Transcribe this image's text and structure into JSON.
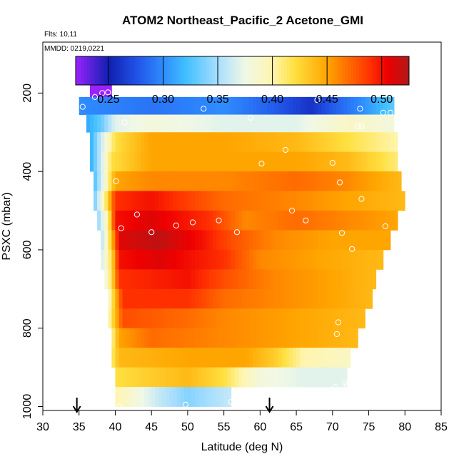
{
  "chart_data": {
    "type": "heatmap",
    "title": "ATOM2 Northeast_Pacific_2 Acetone_GMI",
    "flights_label": "Flts: 10,11",
    "dates_label": "MMDD: 0219,0221",
    "xlabel": "Latitude (deg N)",
    "ylabel": "PSXC (mbar)",
    "xlim": [
      30,
      85
    ],
    "ylim": [
      1010,
      70
    ],
    "y_reversed": true,
    "grid": false,
    "x_ticks": [
      30,
      35,
      40,
      45,
      50,
      55,
      60,
      65,
      70,
      75,
      80,
      85
    ],
    "y_ticks": [
      200,
      400,
      600,
      800,
      1000
    ],
    "colorbar": {
      "placement": "top",
      "range": [
        0.22,
        0.525
      ],
      "ticks": [
        0.25,
        0.3,
        0.35,
        0.4,
        0.45,
        0.5
      ],
      "tick_labels": [
        "0.25",
        "0.30",
        "0.35",
        "0.40",
        "0.45",
        "0.50"
      ],
      "stops": [
        {
          "v": 0.22,
          "c": "#9a22ff"
        },
        {
          "v": 0.25,
          "c": "#1020b0"
        },
        {
          "v": 0.275,
          "c": "#2050e6"
        },
        {
          "v": 0.3,
          "c": "#2f8cff"
        },
        {
          "v": 0.32,
          "c": "#3ebeff"
        },
        {
          "v": 0.35,
          "c": "#a8deff"
        },
        {
          "v": 0.375,
          "c": "#f0f8e6"
        },
        {
          "v": 0.4,
          "c": "#fff5b0"
        },
        {
          "v": 0.42,
          "c": "#ffe040"
        },
        {
          "v": 0.45,
          "c": "#ffa500"
        },
        {
          "v": 0.49,
          "c": "#ff3000"
        },
        {
          "v": 0.505,
          "c": "#ee0000"
        },
        {
          "v": 0.525,
          "c": "#b01818"
        }
      ]
    },
    "rows": [
      {
        "p": [
          170,
          210
        ],
        "lat_min": 36.5,
        "lat_max": 39.5,
        "segments": [
          [
            36.5,
            0.22
          ],
          [
            39.5,
            0.22
          ]
        ]
      },
      {
        "p": [
          210,
          255
        ],
        "lat_min": 35.0,
        "lat_max": 78.5,
        "segments": [
          [
            35,
            0.3
          ],
          [
            45,
            0.29
          ],
          [
            55,
            0.3
          ],
          [
            62,
            0.28
          ],
          [
            67,
            0.26
          ],
          [
            70,
            0.28
          ],
          [
            74,
            0.3
          ],
          [
            78.5,
            0.33
          ]
        ]
      },
      {
        "p": [
          255,
          300
        ],
        "lat_min": 36.0,
        "lat_max": 78.5,
        "segments": [
          [
            36,
            0.31
          ],
          [
            38,
            0.33
          ],
          [
            40,
            0.37
          ],
          [
            45,
            0.38
          ],
          [
            55,
            0.37
          ],
          [
            65,
            0.37
          ],
          [
            72,
            0.39
          ],
          [
            78.5,
            0.38
          ]
        ]
      },
      {
        "p": [
          300,
          350
        ],
        "lat_min": 36.5,
        "lat_max": 79.0,
        "segments": [
          [
            36.5,
            0.31
          ],
          [
            38,
            0.36
          ],
          [
            40,
            0.42
          ],
          [
            45,
            0.45
          ],
          [
            55,
            0.45
          ],
          [
            65,
            0.44
          ],
          [
            72,
            0.42
          ],
          [
            79,
            0.4
          ]
        ]
      },
      {
        "p": [
          350,
          400
        ],
        "lat_min": 36.5,
        "lat_max": 79.0,
        "segments": [
          [
            36.5,
            0.31
          ],
          [
            38,
            0.36
          ],
          [
            39.5,
            0.42
          ],
          [
            45,
            0.45
          ],
          [
            55,
            0.45
          ],
          [
            65,
            0.45
          ],
          [
            72,
            0.44
          ],
          [
            79,
            0.41
          ]
        ]
      },
      {
        "p": [
          400,
          450
        ],
        "lat_min": 37.0,
        "lat_max": 79.5,
        "segments": [
          [
            37,
            0.32
          ],
          [
            38.5,
            0.38
          ],
          [
            40,
            0.45
          ],
          [
            45,
            0.46
          ],
          [
            55,
            0.46
          ],
          [
            65,
            0.47
          ],
          [
            72,
            0.46
          ],
          [
            79.5,
            0.44
          ]
        ]
      },
      {
        "p": [
          450,
          500
        ],
        "lat_min": 37.0,
        "lat_max": 80.0,
        "segments": [
          [
            37,
            0.33
          ],
          [
            38.5,
            0.4
          ],
          [
            40,
            0.49
          ],
          [
            45,
            0.5
          ],
          [
            55,
            0.47
          ],
          [
            65,
            0.46
          ],
          [
            72,
            0.45
          ],
          [
            80,
            0.44
          ]
        ]
      },
      {
        "p": [
          500,
          550
        ],
        "lat_min": 37.5,
        "lat_max": 79.0,
        "segments": [
          [
            37.5,
            0.34
          ],
          [
            39,
            0.4
          ],
          [
            40,
            0.5
          ],
          [
            45,
            0.51
          ],
          [
            53,
            0.49
          ],
          [
            58,
            0.46
          ],
          [
            65,
            0.47
          ],
          [
            72,
            0.46
          ],
          [
            79,
            0.45
          ]
        ]
      },
      {
        "p": [
          550,
          600
        ],
        "lat_min": 38.0,
        "lat_max": 78.0,
        "segments": [
          [
            38,
            0.35
          ],
          [
            39,
            0.4
          ],
          [
            40.5,
            0.51
          ],
          [
            46,
            0.52
          ],
          [
            52,
            0.5
          ],
          [
            56,
            0.48
          ],
          [
            62,
            0.46
          ],
          [
            70,
            0.45
          ],
          [
            78,
            0.45
          ]
        ]
      },
      {
        "p": [
          600,
          650
        ],
        "lat_min": 38.0,
        "lat_max": 77.0,
        "segments": [
          [
            38,
            0.36
          ],
          [
            39.5,
            0.42
          ],
          [
            40.5,
            0.5
          ],
          [
            46,
            0.51
          ],
          [
            55,
            0.49
          ],
          [
            60,
            0.46
          ],
          [
            68,
            0.45
          ],
          [
            77,
            0.44
          ]
        ]
      },
      {
        "p": [
          650,
          700
        ],
        "lat_min": 38.5,
        "lat_max": 76.0,
        "segments": [
          [
            38.5,
            0.37
          ],
          [
            39.5,
            0.42
          ],
          [
            40.5,
            0.49
          ],
          [
            50,
            0.5
          ],
          [
            55,
            0.48
          ],
          [
            62,
            0.46
          ],
          [
            70,
            0.45
          ],
          [
            76,
            0.44
          ]
        ]
      },
      {
        "p": [
          700,
          750
        ],
        "lat_min": 39.0,
        "lat_max": 75.5,
        "segments": [
          [
            39,
            0.38
          ],
          [
            40,
            0.44
          ],
          [
            41,
            0.49
          ],
          [
            50,
            0.49
          ],
          [
            55,
            0.47
          ],
          [
            62,
            0.46
          ],
          [
            70,
            0.45
          ],
          [
            75.5,
            0.44
          ]
        ]
      },
      {
        "p": [
          750,
          800
        ],
        "lat_min": 39.0,
        "lat_max": 74.5,
        "segments": [
          [
            39,
            0.39
          ],
          [
            40,
            0.44
          ],
          [
            41,
            0.48
          ],
          [
            50,
            0.47
          ],
          [
            55,
            0.46
          ],
          [
            65,
            0.45
          ],
          [
            74.5,
            0.44
          ]
        ]
      },
      {
        "p": [
          800,
          850
        ],
        "lat_min": 39.5,
        "lat_max": 73.5,
        "segments": [
          [
            39.5,
            0.4
          ],
          [
            40.5,
            0.45
          ],
          [
            45,
            0.47
          ],
          [
            55,
            0.46
          ],
          [
            65,
            0.45
          ],
          [
            73.5,
            0.44
          ]
        ]
      },
      {
        "p": [
          850,
          900
        ],
        "lat_min": 39.5,
        "lat_max": 72.5,
        "segments": [
          [
            39.5,
            0.41
          ],
          [
            40.5,
            0.44
          ],
          [
            50,
            0.45
          ],
          [
            58,
            0.45
          ],
          [
            62,
            0.43
          ],
          [
            66,
            0.4
          ],
          [
            72.5,
            0.39
          ]
        ]
      },
      {
        "p": [
          900,
          950
        ],
        "lat_min": 40.0,
        "lat_max": 72.0,
        "segments": [
          [
            40,
            0.42
          ],
          [
            45,
            0.43
          ],
          [
            50,
            0.44
          ],
          [
            55,
            0.42
          ],
          [
            60,
            0.38
          ],
          [
            66,
            0.37
          ],
          [
            72,
            0.37
          ]
        ]
      },
      {
        "p": [
          950,
          1000
        ],
        "lat_min": 40.0,
        "lat_max": 56.0,
        "segments": [
          [
            40,
            0.4
          ],
          [
            43,
            0.38
          ],
          [
            46,
            0.36
          ],
          [
            50,
            0.34
          ],
          [
            53,
            0.35
          ],
          [
            56,
            0.36
          ]
        ]
      }
    ],
    "observations": [
      {
        "lat": 35.5,
        "p": 235
      },
      {
        "lat": 37.2,
        "p": 210
      },
      {
        "lat": 38.2,
        "p": 200
      },
      {
        "lat": 39.0,
        "p": 198
      },
      {
        "lat": 52.2,
        "p": 240
      },
      {
        "lat": 58.7,
        "p": 263
      },
      {
        "lat": 67.9,
        "p": 218
      },
      {
        "lat": 73.8,
        "p": 240
      },
      {
        "lat": 77.0,
        "p": 250
      },
      {
        "lat": 78.0,
        "p": 250
      },
      {
        "lat": 41.3,
        "p": 275
      },
      {
        "lat": 73.5,
        "p": 285
      },
      {
        "lat": 74.0,
        "p": 285
      },
      {
        "lat": 63.5,
        "p": 345
      },
      {
        "lat": 60.2,
        "p": 380
      },
      {
        "lat": 70.0,
        "p": 378
      },
      {
        "lat": 40.1,
        "p": 425
      },
      {
        "lat": 71.0,
        "p": 428
      },
      {
        "lat": 74.0,
        "p": 470
      },
      {
        "lat": 64.4,
        "p": 500
      },
      {
        "lat": 43.0,
        "p": 510
      },
      {
        "lat": 66.3,
        "p": 525
      },
      {
        "lat": 54.3,
        "p": 525
      },
      {
        "lat": 50.7,
        "p": 530
      },
      {
        "lat": 48.4,
        "p": 538
      },
      {
        "lat": 77.3,
        "p": 540
      },
      {
        "lat": 40.8,
        "p": 545
      },
      {
        "lat": 45.0,
        "p": 555
      },
      {
        "lat": 56.8,
        "p": 555
      },
      {
        "lat": 71.3,
        "p": 557
      },
      {
        "lat": 72.7,
        "p": 598
      },
      {
        "lat": 70.8,
        "p": 785
      },
      {
        "lat": 70.6,
        "p": 815
      },
      {
        "lat": 71.7,
        "p": 940
      },
      {
        "lat": 72.0,
        "p": 945
      },
      {
        "lat": 70.4,
        "p": 950
      },
      {
        "lat": 56.0,
        "p": 988
      },
      {
        "lat": 49.7,
        "p": 995
      },
      {
        "lat": 40.5,
        "p": 1000
      }
    ],
    "markers": [
      {
        "type": "arrow-down",
        "lat": 34.7
      },
      {
        "type": "arrow-down",
        "lat": 61.3
      }
    ]
  }
}
